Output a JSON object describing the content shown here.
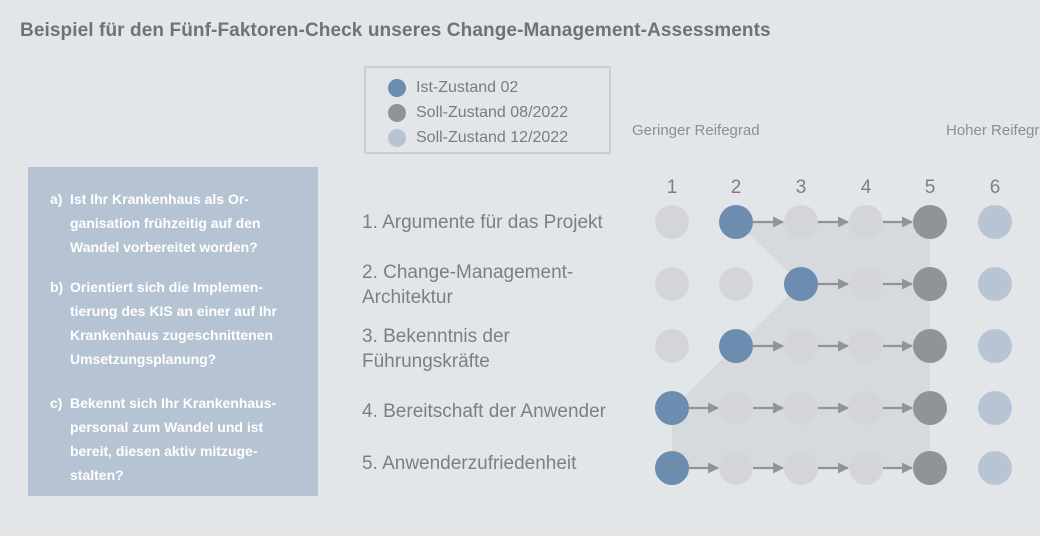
{
  "title": "Beispiel für den Fünf-Faktoren-Check unseres Change-Management-Assessments",
  "colors": {
    "background": "#e3e6e9",
    "ist": "#6c8cb0",
    "soll_08": "#909499",
    "soll_12": "#b8c3d4",
    "empty": "#d3d5d9",
    "arrow": "#909499",
    "question_box": "#b6c3d3"
  },
  "legend": [
    {
      "label": "Ist-Zustand 02",
      "color": "#6c8cb0"
    },
    {
      "label": "Soll-Zustand 08/2022",
      "color": "#909499"
    },
    {
      "label": "Soll-Zustand 12/2022",
      "color": "#b8c3d4"
    }
  ],
  "questions": [
    {
      "letter": "a)",
      "text": "Ist Ihr Krankenhaus als Or-\nganisation frühzeitig auf den\nWandel vorbereitet worden?"
    },
    {
      "letter": "b)",
      "text": "Orientiert sich die Implemen-\ntierung des KIS an einer auf Ihr\nKrankenhaus zugeschnittenen\nUmsetzungsplanung?"
    },
    {
      "letter": "c)",
      "text": "Bekennt sich Ihr Krankenhaus-\npersonal zum Wandel und ist\nbereit, diesen aktiv mitzuge-\nstalten?"
    }
  ],
  "scale": {
    "low_label": "Geringer\nReifegrad",
    "high_label": "Hoher\nReifegrad",
    "columns": [
      "1",
      "2",
      "3",
      "4",
      "5",
      "6"
    ]
  },
  "factors": [
    {
      "label": "1. Argumente für das Projekt",
      "ist": 2,
      "soll_08": 5,
      "soll_12": 6
    },
    {
      "label": "2. Change-Management-\nArchitektur",
      "ist": 3,
      "soll_08": 5,
      "soll_12": 6
    },
    {
      "label": "3. Bekenntnis der\nFührungskräfte",
      "ist": 2,
      "soll_08": 5,
      "soll_12": 6
    },
    {
      "label": "4. Bereitschaft der Anwender",
      "ist": 1,
      "soll_08": 5,
      "soll_12": 6
    },
    {
      "label": "5. Anwenderzufriedenheit",
      "ist": 1,
      "soll_08": 5,
      "soll_12": 6
    }
  ]
}
